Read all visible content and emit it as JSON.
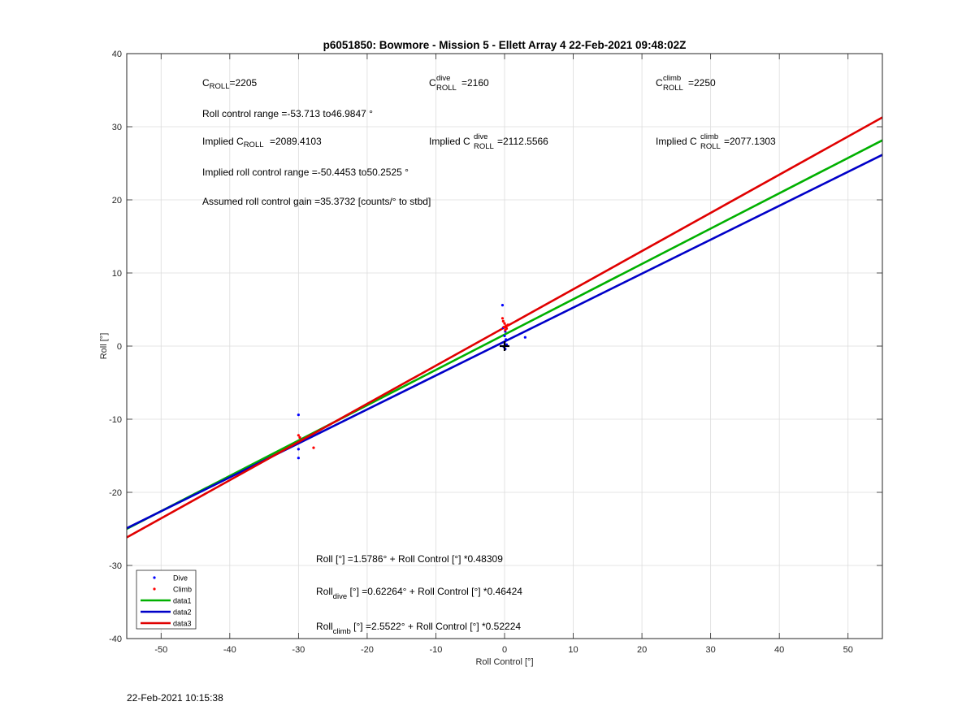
{
  "footer_timestamp": "22-Feb-2021 10:15:38",
  "chart_data": {
    "type": "scatter",
    "title": "p6051850: Bowmore - Mission 5 - Ellett Array 4 22-Feb-2021 09:48:02Z",
    "xlabel": "Roll Control [°]",
    "ylabel": "Roll [°]",
    "xlim": [
      -55,
      55
    ],
    "ylim": [
      -40,
      40
    ],
    "xticks": [
      -50,
      -40,
      -30,
      -20,
      -10,
      0,
      10,
      20,
      30,
      40,
      50
    ],
    "yticks": [
      -40,
      -30,
      -20,
      -10,
      0,
      10,
      20,
      30,
      40
    ],
    "grid": true,
    "legend_position": "bottom-left",
    "colors": {
      "dive": "#0000ff",
      "climb": "#ff0000",
      "data1": "#00b000",
      "data2": "#0000c8",
      "data3": "#e00000",
      "marker": "#000000"
    },
    "series": [
      {
        "name": "Dive",
        "kind": "points",
        "color": "#0000ff",
        "points": [
          [
            -0.3,
            5.6
          ],
          [
            -0.2,
            2.5
          ],
          [
            0.1,
            2.0
          ],
          [
            0.0,
            1.4
          ],
          [
            0.2,
            0.9
          ],
          [
            0.0,
            0.5
          ],
          [
            0.3,
            0.2
          ],
          [
            -0.1,
            -0.1
          ],
          [
            0.1,
            -0.4
          ],
          [
            3.0,
            1.2
          ],
          [
            -30.0,
            -9.4
          ],
          [
            -30.0,
            -14.1
          ],
          [
            -30.0,
            -15.3
          ]
        ]
      },
      {
        "name": "Climb",
        "kind": "points",
        "color": "#ff0000",
        "points": [
          [
            -0.3,
            3.8
          ],
          [
            -0.2,
            3.4
          ],
          [
            0.0,
            3.1
          ],
          [
            0.2,
            2.8
          ],
          [
            -0.1,
            2.6
          ],
          [
            0.3,
            2.4
          ],
          [
            0.5,
            2.9
          ],
          [
            0.1,
            2.2
          ],
          [
            -30.0,
            -12.2
          ],
          [
            -29.8,
            -12.5
          ],
          [
            -27.8,
            -13.9
          ]
        ]
      },
      {
        "name": "data1",
        "kind": "line",
        "color": "#00b000",
        "intercept": 1.5786,
        "slope": 0.48309
      },
      {
        "name": "data2",
        "kind": "line",
        "color": "#0000c8",
        "intercept": 0.62264,
        "slope": 0.46424
      },
      {
        "name": "data3",
        "kind": "line",
        "color": "#e00000",
        "intercept": 2.5522,
        "slope": 0.52224
      }
    ],
    "marker_plus": [
      0,
      0
    ],
    "annotations": {
      "c_roll_main": "C",
      "c_roll_sub": "ROLL",
      "c_roll_val": "=2205",
      "c_dive_main": "C",
      "c_dive_sup": "dive",
      "c_dive_sub": "ROLL",
      "c_dive_val": "=2160",
      "c_climb_main": "C",
      "c_climb_sup": "climb",
      "c_climb_sub": "ROLL",
      "c_climb_val": "=2250",
      "range_text": "Roll control range =-53.713 to46.9847 °",
      "implied_main_pre": "Implied C",
      "implied_main_sub": "ROLL",
      "implied_main_val": "=2089.4103",
      "implied_dive_pre": "Implied C",
      "implied_dive_sup": "dive",
      "implied_dive_sub": "ROLL",
      "implied_dive_val": "=2112.5566",
      "implied_climb_pre": "Implied C",
      "implied_climb_sup": "climb",
      "implied_climb_sub": "ROLL",
      "implied_climb_val": "=2077.1303",
      "implied_range_text": "Implied roll control range =-50.4453 to50.2525 °",
      "gain_text": "Assumed roll control gain =35.3732 [counts/° to stbd]",
      "eq_main": "Roll [°] =1.5786° + Roll Control [°] *0.48309",
      "eq_dive_pre": "Roll",
      "eq_dive_sub": "dive",
      "eq_dive_post": " [°] =0.62264° + Roll Control [°] *0.46424",
      "eq_climb_pre": "Roll",
      "eq_climb_sub": "climb",
      "eq_climb_post": " [°] =2.5522° + Roll Control [°] *0.52224"
    }
  }
}
